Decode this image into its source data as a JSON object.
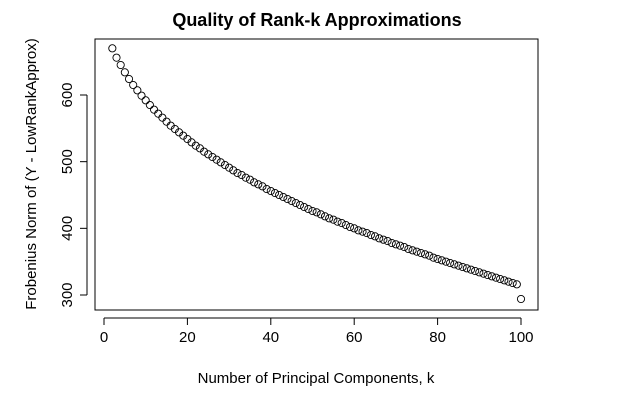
{
  "chart_data": {
    "type": "scatter",
    "title": "Quality of Rank-k Approximations",
    "xlabel": "Number of Principal Components, k",
    "ylabel": "Frobenius Norm of (Y - LowRankApprox)",
    "xlim": [
      0,
      100
    ],
    "ylim": [
      300,
      670
    ],
    "x_ticks": [
      0,
      20,
      40,
      60,
      80,
      100
    ],
    "y_ticks": [
      300,
      400,
      500,
      600
    ],
    "grid": false,
    "marker": "open-circle",
    "x": [
      2,
      3,
      4,
      5,
      6,
      7,
      8,
      9,
      10,
      11,
      12,
      13,
      14,
      15,
      16,
      17,
      18,
      19,
      20,
      21,
      22,
      23,
      24,
      25,
      26,
      27,
      28,
      29,
      30,
      31,
      32,
      33,
      34,
      35,
      36,
      37,
      38,
      39,
      40,
      41,
      42,
      43,
      44,
      45,
      46,
      47,
      48,
      49,
      50,
      51,
      52,
      53,
      54,
      55,
      56,
      57,
      58,
      59,
      60,
      61,
      62,
      63,
      64,
      65,
      66,
      67,
      68,
      69,
      70,
      71,
      72,
      73,
      74,
      75,
      76,
      77,
      78,
      79,
      80,
      81,
      82,
      83,
      84,
      85,
      86,
      87,
      88,
      89,
      90,
      91,
      92,
      93,
      94,
      95,
      96,
      97,
      98,
      99,
      100
    ],
    "y": [
      670,
      656,
      645,
      634,
      624,
      615,
      607,
      599,
      592,
      585,
      578,
      572,
      566,
      560,
      554,
      549,
      544,
      539,
      534,
      529,
      524,
      520,
      515,
      511,
      507,
      503,
      499,
      495,
      491,
      487,
      483,
      480,
      476,
      473,
      469,
      466,
      463,
      459,
      456,
      453,
      450,
      447,
      444,
      441,
      438,
      435,
      432,
      429,
      426,
      424,
      421,
      418,
      415,
      413,
      410,
      408,
      405,
      402,
      400,
      397,
      395,
      393,
      390,
      388,
      385,
      383,
      381,
      378,
      376,
      374,
      372,
      369,
      367,
      365,
      363,
      361,
      359,
      356,
      354,
      352,
      350,
      348,
      346,
      344,
      342,
      340,
      338,
      336,
      334,
      332,
      330,
      328,
      326,
      324,
      322,
      320,
      318,
      316,
      294
    ]
  }
}
